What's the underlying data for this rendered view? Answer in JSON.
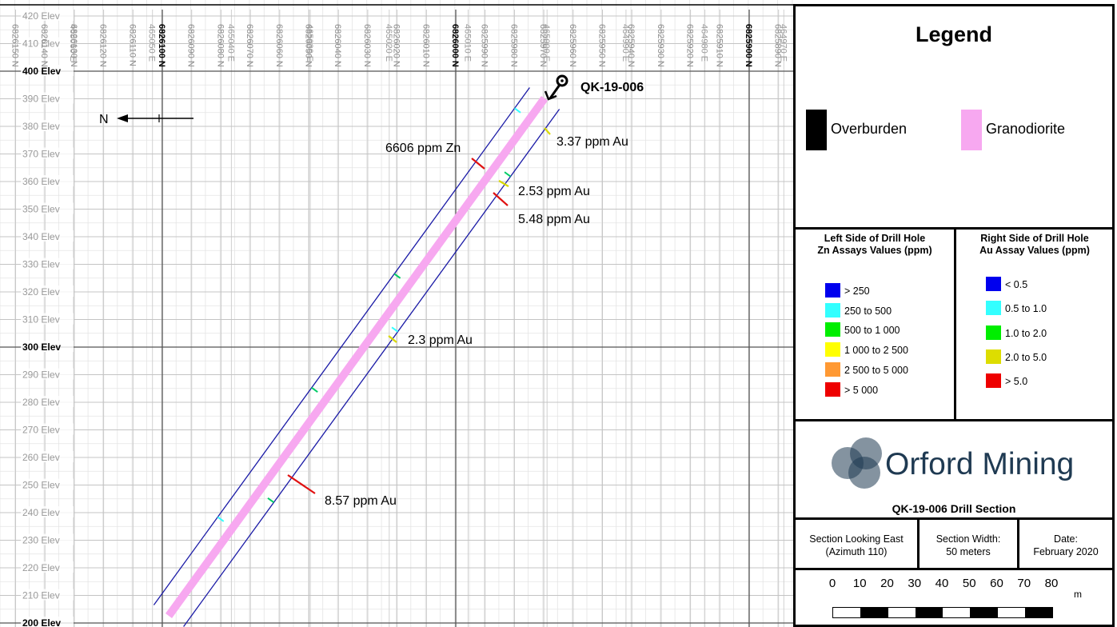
{
  "section": {
    "drill_hole_id": "QK-19-006",
    "north_arrow_label": "N",
    "elevation_labels": [
      "420 Elev",
      "410 Elev",
      "400 Elev",
      "390 Elev",
      "380 Elev",
      "370 Elev",
      "360 Elev",
      "350 Elev",
      "340 Elev",
      "330 Elev",
      "320 Elev",
      "310 Elev",
      "300 Elev",
      "290 Elev",
      "280 Elev",
      "270 Elev",
      "260 Elev",
      "250 Elev",
      "240 Elev",
      "230 Elev",
      "220 Elev",
      "210 Elev",
      "200 Elev"
    ],
    "northing_labels_major": [
      "6826100 N",
      "6826000 N",
      "6825900 N"
    ],
    "northing_labels_minor": [
      "6826150 N",
      "6826140 N",
      "6826130 N",
      "6826120 N",
      "6826110 N",
      "6826090 N",
      "6826080 N",
      "6826070 N",
      "6826060 N",
      "6826050 N",
      "6826040 N",
      "6826030 N",
      "6826020 N",
      "6826010 N",
      "6825990 N",
      "6825980 N",
      "6825970 N",
      "6825960 N",
      "6825950 N",
      "6825940 N",
      "6825930 N",
      "6825920 N",
      "6825910 N",
      "6825890 N",
      "6825880 N"
    ],
    "easting_labels": [
      "465060 E",
      "465050 E",
      "465040 E",
      "465030 E",
      "465020 E",
      "465010 E",
      "465000 E",
      "464990 E",
      "464980 E",
      "464970 E"
    ],
    "assay_labels": [
      {
        "text": "6606 ppm Zn",
        "color": "#e01010"
      },
      {
        "text": "3.37 ppm Au",
        "color": "#d8d800"
      },
      {
        "text": "2.53 ppm Au",
        "color": "#d8d800"
      },
      {
        "text": "5.48 ppm Au",
        "color": "#e01010"
      },
      {
        "text": "2.3 ppm Au",
        "color": "#d8d800"
      },
      {
        "text": "8.57 ppm Au",
        "color": "#e01010"
      }
    ]
  },
  "legend": {
    "title": "Legend",
    "lithology": [
      {
        "label": "Overburden",
        "color": "#000000"
      },
      {
        "label": "Granodiorite",
        "color": "#f7a8f0"
      }
    ],
    "zn": {
      "heading_line1": "Left Side of Drill Hole",
      "heading_line2": "Zn Assays Values (ppm)",
      "items": [
        {
          "label": "> 250",
          "color": "#0000ee"
        },
        {
          "label": "250 to 500",
          "color": "#33ffff"
        },
        {
          "label": "500 to 1 000",
          "color": "#00ee00"
        },
        {
          "label": "1 000 to 2 500",
          "color": "#ffff00"
        },
        {
          "label": "2 500 to 5 000",
          "color": "#ff9933"
        },
        {
          "label": "> 5 000",
          "color": "#ee0000"
        }
      ]
    },
    "au": {
      "heading_line1": "Right Side of Drill Hole",
      "heading_line2": "Au Assay Values (ppm)",
      "items": [
        {
          "label": "< 0.5",
          "color": "#0000ee"
        },
        {
          "label": "0.5 to 1.0",
          "color": "#33ffff"
        },
        {
          "label": "1.0 to 2.0",
          "color": "#00ee00"
        },
        {
          "label": "2.0 to 5.0",
          "color": "#dddd00"
        },
        {
          "label": "> 5.0",
          "color": "#ee0000"
        }
      ]
    }
  },
  "logo": {
    "company_name": "Orford Mining",
    "section_title": "QK-19-006 Drill Section",
    "brand_color": "#1f3a52"
  },
  "info": {
    "look_line1": "Section Looking East",
    "look_line2": "(Azimuth 110)",
    "width_line1": "Section Width:",
    "width_line2": "50 meters",
    "date_line1": "Date:",
    "date_line2": "February 2020"
  },
  "scale_bar": {
    "ticks": [
      "0",
      "10",
      "20",
      "30",
      "40",
      "50",
      "60",
      "70",
      "80"
    ],
    "unit": "m"
  }
}
